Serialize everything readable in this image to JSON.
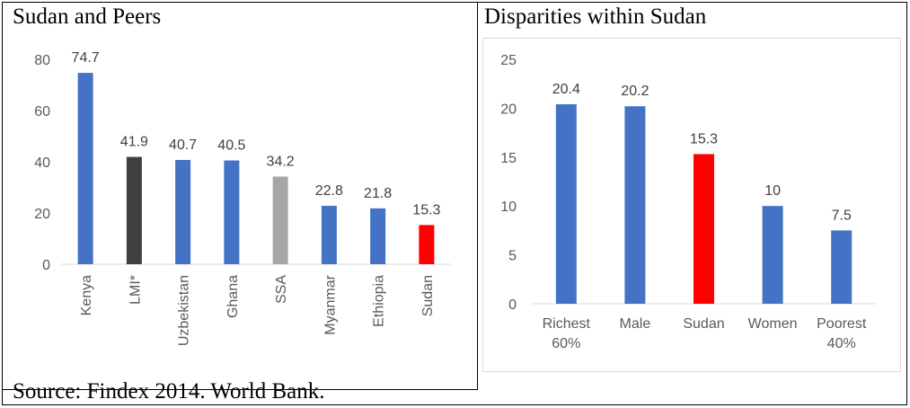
{
  "left": {
    "title": "Sudan and Peers",
    "chart": {
      "type": "bar",
      "categories": [
        "Kenya",
        "LMI*",
        "Uzbekistan",
        "Ghana",
        "SSA",
        "Myanmar",
        "Ethiopia",
        "Sudan"
      ],
      "values": [
        74.7,
        41.9,
        40.7,
        40.5,
        34.2,
        22.8,
        21.8,
        15.3
      ],
      "value_labels": [
        "74.7",
        "41.9",
        "40.7",
        "40.5",
        "34.2",
        "22.8",
        "21.8",
        "15.3"
      ],
      "colors": [
        "#4472C4",
        "#404040",
        "#4472C4",
        "#4472C4",
        "#A6A6A6",
        "#4472C4",
        "#4472C4",
        "#FF0000"
      ],
      "yticks": [
        0,
        20,
        40,
        60,
        80
      ],
      "ylim": [
        0,
        80
      ]
    }
  },
  "right": {
    "title": "Disparities within Sudan",
    "chart": {
      "type": "bar",
      "categories": [
        [
          "Richest",
          "60%"
        ],
        [
          "Male"
        ],
        [
          "Sudan"
        ],
        [
          "Women"
        ],
        [
          "Poorest",
          "40%"
        ]
      ],
      "values": [
        20.4,
        20.2,
        15.3,
        10,
        7.5
      ],
      "value_labels": [
        "20.4",
        "20.2",
        "15.3",
        "10",
        "7.5"
      ],
      "colors": [
        "#4472C4",
        "#4472C4",
        "#FF0000",
        "#4472C4",
        "#4472C4"
      ],
      "yticks": [
        0,
        5,
        10,
        15,
        20,
        25
      ],
      "ylim": [
        0,
        25
      ]
    }
  },
  "source": "Source: Findex 2014. World Bank.",
  "chart_data": [
    {
      "type": "bar",
      "title": "Sudan and Peers",
      "categories": [
        "Kenya",
        "LMI*",
        "Uzbekistan",
        "Ghana",
        "SSA",
        "Myanmar",
        "Ethiopia",
        "Sudan"
      ],
      "values": [
        74.7,
        41.9,
        40.7,
        40.5,
        34.2,
        22.8,
        21.8,
        15.3
      ],
      "ylim": [
        0,
        80
      ],
      "grid": false
    },
    {
      "type": "bar",
      "title": "Disparities within Sudan",
      "categories": [
        "Richest 60%",
        "Male",
        "Sudan",
        "Women",
        "Poorest 40%"
      ],
      "values": [
        20.4,
        20.2,
        15.3,
        10,
        7.5
      ],
      "ylim": [
        0,
        25
      ],
      "grid": false
    }
  ]
}
